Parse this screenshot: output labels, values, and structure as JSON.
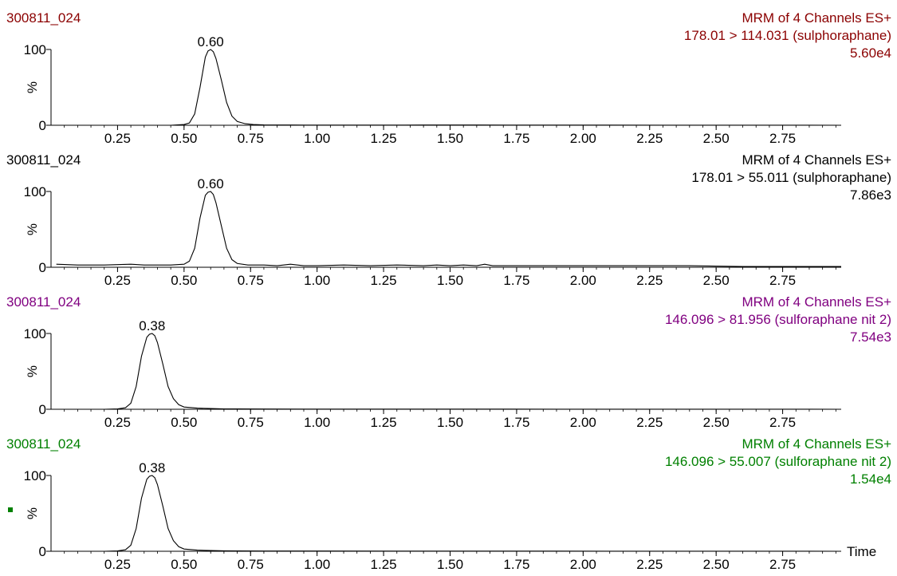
{
  "x_axis_label": "Time",
  "marker_color": "#008000",
  "chart_data": [
    {
      "type": "line",
      "sample": "300811_024",
      "header": "MRM of 4 Channels ES+",
      "transition": "178.01 > 114.031 (sulphoraphane)",
      "intensity": "5.60e4",
      "peak_label": "0.60",
      "color": "#8b0000",
      "ylabel": "%",
      "y_ticks": [
        "0",
        "100"
      ],
      "x_ticks": [
        "0.25",
        "0.50",
        "0.75",
        "1.00",
        "1.25",
        "1.50",
        "1.75",
        "2.00",
        "2.25",
        "2.50",
        "2.75"
      ],
      "xlim": [
        0,
        2.97
      ],
      "ylim": [
        0,
        100
      ],
      "series": [
        {
          "x": [
            0.02,
            0.1,
            0.2,
            0.3,
            0.4,
            0.45,
            0.5,
            0.52,
            0.54,
            0.56,
            0.58,
            0.59,
            0.6,
            0.61,
            0.62,
            0.64,
            0.66,
            0.68,
            0.7,
            0.73,
            0.76,
            0.8,
            0.9,
            1.0,
            1.2,
            1.4,
            1.6,
            1.8,
            2.0,
            2.3,
            2.6,
            2.97
          ],
          "y": [
            0,
            0,
            0,
            0,
            0,
            0,
            1,
            3,
            15,
            50,
            90,
            98,
            100,
            97,
            88,
            60,
            30,
            12,
            5,
            2,
            1,
            0.5,
            0.3,
            0.2,
            0.2,
            0.3,
            0.3,
            0.2,
            0.2,
            0.1,
            0.1,
            0
          ]
        }
      ]
    },
    {
      "type": "line",
      "sample": "300811_024",
      "header": "MRM of 4 Channels ES+",
      "transition": "178.01 > 55.011 (sulphoraphane)",
      "intensity": "7.86e3",
      "peak_label": "0.60",
      "color": "#000000",
      "ylabel": "%",
      "y_ticks": [
        "0",
        "100"
      ],
      "x_ticks": [
        "0.25",
        "0.50",
        "0.75",
        "1.00",
        "1.25",
        "1.50",
        "1.75",
        "2.00",
        "2.25",
        "2.50",
        "2.75"
      ],
      "xlim": [
        0,
        2.97
      ],
      "ylim": [
        0,
        100
      ],
      "series": [
        {
          "x": [
            0.02,
            0.1,
            0.2,
            0.3,
            0.35,
            0.4,
            0.45,
            0.5,
            0.52,
            0.54,
            0.56,
            0.58,
            0.59,
            0.6,
            0.61,
            0.62,
            0.64,
            0.66,
            0.68,
            0.7,
            0.74,
            0.8,
            0.85,
            0.9,
            0.95,
            1.0,
            1.1,
            1.2,
            1.3,
            1.4,
            1.45,
            1.5,
            1.55,
            1.6,
            1.63,
            1.66,
            1.7,
            1.8,
            2.0,
            2.2,
            2.4,
            2.6,
            2.8,
            2.97
          ],
          "y": [
            4,
            3,
            3,
            4,
            3,
            3,
            3,
            4,
            8,
            25,
            65,
            95,
            99,
            100,
            96,
            85,
            55,
            25,
            10,
            5,
            3,
            3,
            2,
            4,
            2,
            2,
            3,
            2,
            3,
            2,
            3,
            2,
            3,
            2,
            4,
            2,
            2,
            2,
            2,
            2,
            2,
            1,
            1,
            1
          ]
        }
      ]
    },
    {
      "type": "line",
      "sample": "300811_024",
      "header": "MRM of 4 Channels ES+",
      "transition": "146.096 > 81.956 (sulforaphane nit 2)",
      "intensity": "7.54e3",
      "peak_label": "0.38",
      "color": "#800080",
      "ylabel": "%",
      "y_ticks": [
        "0",
        "100"
      ],
      "x_ticks": [
        "0.25",
        "0.50",
        "0.75",
        "1.00",
        "1.25",
        "1.50",
        "1.75",
        "2.00",
        "2.25",
        "2.50",
        "2.75"
      ],
      "xlim": [
        0,
        2.97
      ],
      "ylim": [
        0,
        100
      ],
      "series": [
        {
          "x": [
            0.02,
            0.1,
            0.2,
            0.25,
            0.28,
            0.3,
            0.32,
            0.34,
            0.36,
            0.37,
            0.38,
            0.39,
            0.4,
            0.42,
            0.44,
            0.46,
            0.48,
            0.5,
            0.55,
            0.6,
            0.65,
            0.7,
            0.8,
            1.0,
            1.3,
            1.6,
            1.9,
            2.2,
            2.5,
            2.97
          ],
          "y": [
            0,
            0,
            0,
            0.5,
            2,
            8,
            30,
            70,
            95,
            99,
            100,
            97,
            88,
            60,
            30,
            14,
            6,
            3,
            1.5,
            1,
            0.5,
            0.5,
            0.3,
            0.2,
            0.2,
            0.2,
            0.1,
            0.1,
            0.1,
            0
          ]
        }
      ]
    },
    {
      "type": "line",
      "sample": "300811_024",
      "header": "MRM of 4 Channels ES+",
      "transition": "146.096 > 55.007 (sulforaphane nit 2)",
      "intensity": "1.54e4",
      "peak_label": "0.38",
      "color": "#008000",
      "ylabel": "%",
      "y_ticks": [
        "0",
        "100"
      ],
      "x_ticks": [
        "0.25",
        "0.50",
        "0.75",
        "1.00",
        "1.25",
        "1.50",
        "1.75",
        "2.00",
        "2.25",
        "2.50",
        "2.75"
      ],
      "xlim": [
        0,
        2.97
      ],
      "ylim": [
        0,
        100
      ],
      "series": [
        {
          "x": [
            0.02,
            0.1,
            0.2,
            0.25,
            0.28,
            0.3,
            0.32,
            0.34,
            0.36,
            0.37,
            0.38,
            0.39,
            0.4,
            0.42,
            0.44,
            0.46,
            0.48,
            0.5,
            0.55,
            0.6,
            0.65,
            0.7,
            0.8,
            1.0,
            1.3,
            1.6,
            1.9,
            2.2,
            2.5,
            2.97
          ],
          "y": [
            0,
            0,
            0,
            0.5,
            2,
            8,
            30,
            70,
            95,
            99,
            100,
            97,
            88,
            60,
            30,
            14,
            6,
            3,
            1.5,
            1,
            0.6,
            0.5,
            0.3,
            0.3,
            0.2,
            0.2,
            0.2,
            0.1,
            0.1,
            0
          ]
        }
      ]
    }
  ]
}
